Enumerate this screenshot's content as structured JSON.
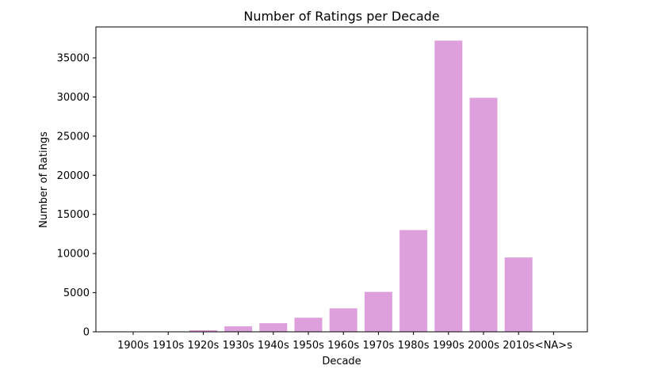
{
  "chart_data": {
    "type": "bar",
    "title": "Number of Ratings per Decade",
    "xlabel": "Decade",
    "ylabel": "Number of Ratings",
    "categories": [
      "1900s",
      "1910s",
      "1920s",
      "1930s",
      "1940s",
      "1950s",
      "1960s",
      "1970s",
      "1980s",
      "1990s",
      "2000s",
      "2010s",
      "<NA>s"
    ],
    "values": [
      8,
      20,
      200,
      700,
      1100,
      1800,
      3000,
      5100,
      13000,
      37200,
      29900,
      9500,
      0
    ],
    "yticks": [
      0,
      5000,
      10000,
      15000,
      20000,
      25000,
      30000,
      35000
    ],
    "ylim": [
      0,
      38950
    ],
    "bar_color": "#dda0dd",
    "grid": false,
    "legend": "none"
  }
}
